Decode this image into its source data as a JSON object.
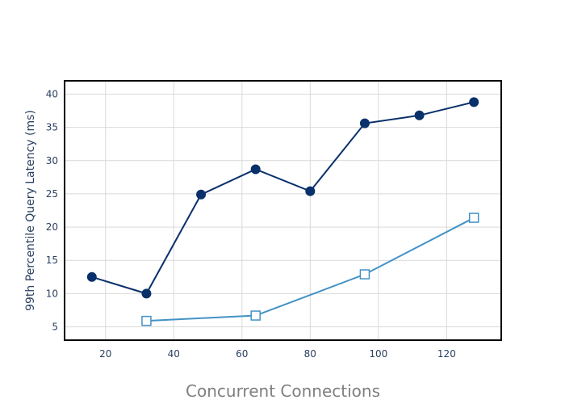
{
  "chart_data": {
    "type": "line",
    "title": "",
    "xlabel": "Concurrent Connections",
    "ylabel": "99th Percentile Query Latency (ms)",
    "xlim": [
      8,
      136
    ],
    "ylim": [
      3,
      42
    ],
    "x_ticks": [
      20,
      40,
      60,
      80,
      100,
      120
    ],
    "y_ticks": [
      5,
      10,
      15,
      20,
      25,
      30,
      35,
      40
    ],
    "grid": true,
    "legend": "none",
    "series": [
      {
        "marker": "circle",
        "color": "#08306b",
        "points": [
          {
            "x": 16,
            "y": 12.5
          },
          {
            "x": 32,
            "y": 10.0
          },
          {
            "x": 48,
            "y": 24.9
          },
          {
            "x": 64,
            "y": 28.7
          },
          {
            "x": 80,
            "y": 25.4
          },
          {
            "x": 96,
            "y": 35.6
          },
          {
            "x": 112,
            "y": 36.8
          },
          {
            "x": 128,
            "y": 38.8
          }
        ]
      },
      {
        "marker": "square-open",
        "color": "#4292c6",
        "points": [
          {
            "x": 32,
            "y": 5.9
          },
          {
            "x": 64,
            "y": 6.7
          },
          {
            "x": 96,
            "y": 12.9
          },
          {
            "x": 128,
            "y": 21.4
          }
        ]
      }
    ]
  }
}
